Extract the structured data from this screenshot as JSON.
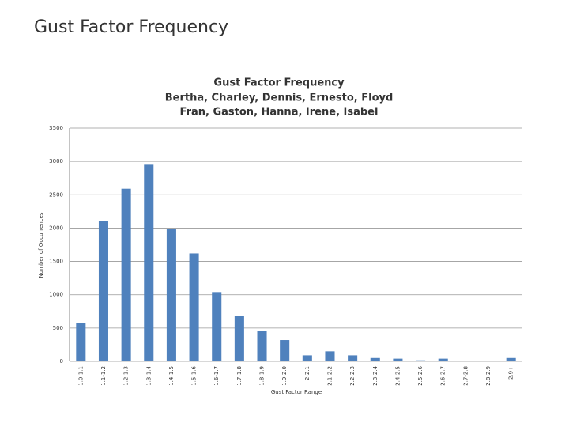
{
  "slide_title": "Gust Factor Frequency",
  "chart_data": {
    "type": "bar",
    "title": "Gust Factor Frequency",
    "subtitle": [
      "Bertha, Charley, Dennis, Ernesto, Floyd",
      "Fran, Gaston, Hanna, Irene, Isabel"
    ],
    "x_label": "Gust Factor Range",
    "y_label": "Number of Occurrences",
    "categories": [
      "1.0-1.1",
      "1.1-1.2",
      "1.2-1.3",
      "1.3-1.4",
      "1.4-1.5",
      "1.5-1.6",
      "1.6-1.7",
      "1.7-1.8",
      "1.8-1.9",
      "1.9-2.0",
      "2-2.1",
      "2.1-2.2",
      "2.2-2.3",
      "2.3-2.4",
      "2.4-2.5",
      "2.5-2.6",
      "2.6-2.7",
      "2.7-2.8",
      "2.8-2.9",
      "2.9+"
    ],
    "values": [
      580,
      2100,
      2590,
      2950,
      1990,
      1620,
      1040,
      680,
      460,
      320,
      90,
      150,
      90,
      50,
      40,
      15,
      40,
      10,
      0,
      50
    ],
    "color": "#4f81bd",
    "ylim": [
      0,
      3500
    ],
    "yticks": [
      0,
      500,
      1000,
      1500,
      2000,
      2500,
      3000,
      3500
    ],
    "grid": true
  }
}
